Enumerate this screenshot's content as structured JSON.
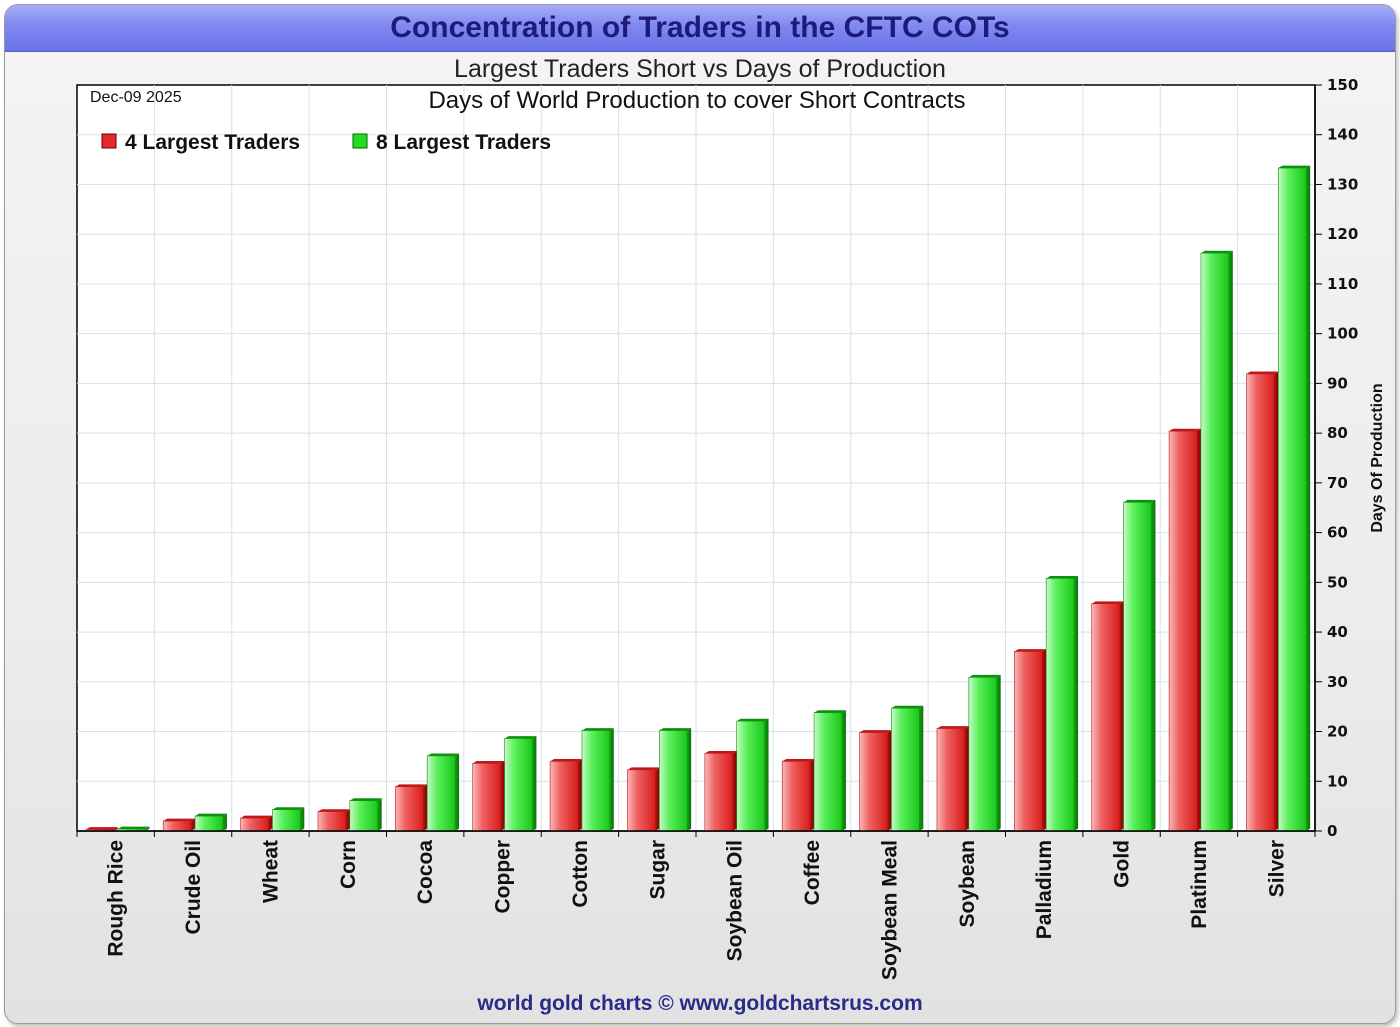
{
  "header": {
    "title": "Concentration of Traders in the CFTC COTs",
    "subtitle": "Largest Traders Short vs Days of Production"
  },
  "footer": {
    "credit": "world gold charts © www.goldchartsrus.com"
  },
  "colors": {
    "series_4": "#e8292b",
    "series_8": "#22dd22",
    "title_bar": "#7a82ee",
    "title_text": "#1c1c78"
  },
  "chart_data": {
    "type": "bar",
    "title": "Days of World Production to cover Short Contracts",
    "date": "Dec-09  2025",
    "ylabel": "Days Of Production",
    "ylim": [
      0,
      150
    ],
    "yticks": [
      0,
      10,
      20,
      30,
      40,
      50,
      60,
      70,
      80,
      90,
      100,
      110,
      120,
      130,
      140,
      150
    ],
    "y_axis_side": "right",
    "grid": true,
    "legend_position": "top-left",
    "categories": [
      "Rough Rice",
      "Crude Oil",
      "Wheat",
      "Corn",
      "Cocoa",
      "Copper",
      "Cotton",
      "Sugar",
      "Soybean Oil",
      "Coffee",
      "Soybean Meal",
      "Soybean",
      "Palladium",
      "Gold",
      "Platinum",
      "Silver"
    ],
    "series": [
      {
        "name": "4 Largest Traders",
        "values": [
          0.3,
          2.0,
          2.6,
          3.9,
          8.9,
          13.6,
          14.0,
          12.3,
          15.6,
          14.0,
          19.8,
          20.6,
          36.1,
          45.7,
          80.4,
          91.9
        ]
      },
      {
        "name": "8 Largest Traders",
        "values": [
          0.4,
          3.0,
          4.3,
          6.1,
          15.1,
          18.6,
          20.2,
          20.2,
          22.1,
          23.8,
          24.7,
          30.9,
          50.8,
          66.1,
          116.2,
          133.3
        ]
      }
    ]
  }
}
